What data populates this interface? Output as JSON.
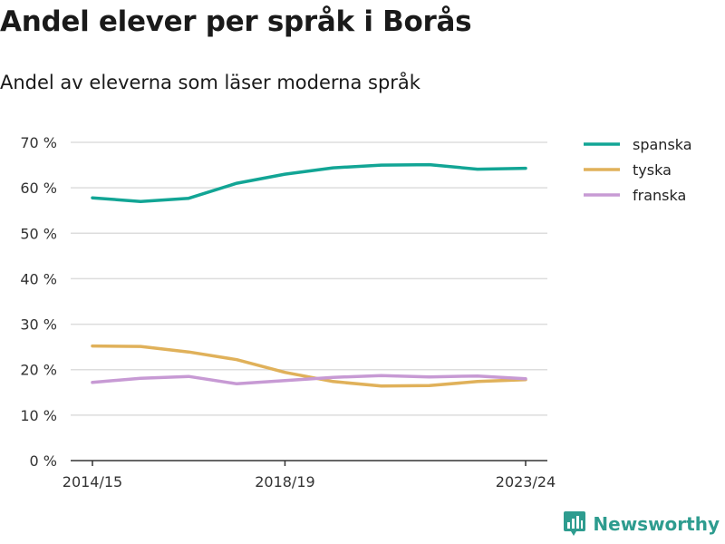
{
  "title": "Andel elever per språk i Borås",
  "subtitle": "Andel av eleverna som läser moderna språk",
  "brand": "Newsworthy",
  "colors": {
    "spanska": "#12a595",
    "tyska": "#e0b15a",
    "franska": "#c79ad4",
    "grid": "#dddddd",
    "axis": "#333333"
  },
  "chart_data": {
    "type": "line",
    "title": "Andel elever per språk i Borås",
    "subtitle": "Andel av eleverna som läser moderna språk",
    "x": [
      "2014/15",
      "2015/16",
      "2016/17",
      "2017/18",
      "2018/19",
      "2019/20",
      "2020/21",
      "2021/22",
      "2022/23",
      "2023/24"
    ],
    "x_tick_labels": [
      "2014/15",
      "2018/19",
      "2023/24"
    ],
    "y_tick_labels": [
      "0 %",
      "10 %",
      "20 %",
      "30 %",
      "40 %",
      "50 %",
      "60 %",
      "70 %"
    ],
    "ylim": [
      0,
      70
    ],
    "grid": true,
    "legend_position": "top-right",
    "series": [
      {
        "name": "spanska",
        "color": "#12a595",
        "values": [
          57.8,
          57.0,
          57.7,
          61.0,
          63.0,
          64.4,
          65.0,
          65.1,
          64.1,
          64.3
        ]
      },
      {
        "name": "tyska",
        "color": "#e0b15a",
        "values": [
          25.2,
          25.1,
          23.9,
          22.2,
          19.4,
          17.4,
          16.4,
          16.5,
          17.4,
          17.8
        ]
      },
      {
        "name": "franska",
        "color": "#c79ad4",
        "values": [
          17.2,
          18.1,
          18.5,
          16.9,
          17.6,
          18.3,
          18.7,
          18.4,
          18.6,
          18.0
        ]
      }
    ]
  }
}
